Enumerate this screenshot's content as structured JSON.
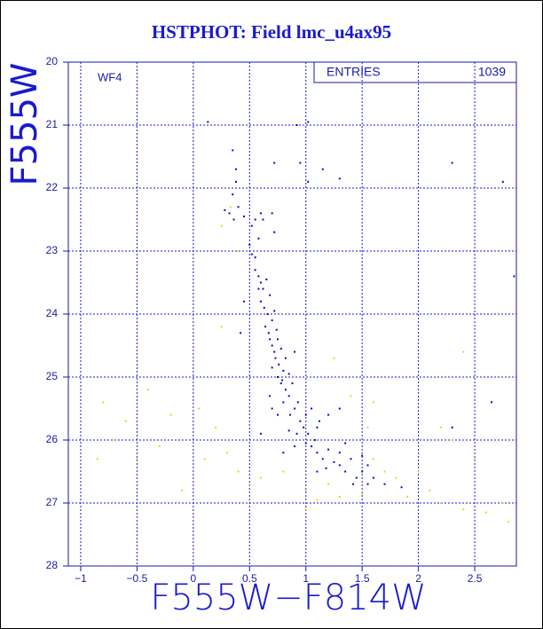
{
  "chart_data": {
    "type": "scatter",
    "title": "HSTPHOT: Field lmc_u4ax95",
    "annotation": "WF4",
    "entries_label": "ENTRIES",
    "entries_value": "1039",
    "xlabel": "F555W−F814W",
    "ylabel": "F555W",
    "xlim": [
      -1.11,
      2.87
    ],
    "ylim": [
      28,
      20
    ],
    "xticks": [
      {
        "value": -1,
        "label": "−1"
      },
      {
        "value": -0.5,
        "label": "−0.5"
      },
      0,
      0.5,
      1,
      1.5,
      2,
      2.5
    ],
    "yticks": [
      20,
      21,
      22,
      23,
      24,
      25,
      26,
      27,
      28
    ],
    "grid": true,
    "series": [
      {
        "color": "#f0d020",
        "x": [
          -0.8,
          -0.6,
          -0.5,
          -0.3,
          -0.1,
          0.1,
          0.2,
          0.3,
          -0.4,
          -0.7,
          0.05,
          0.4,
          0.6,
          0.8,
          1.0,
          1.2,
          1.3,
          1.5,
          1.7,
          1.8,
          1.9,
          2.0,
          2.1,
          2.2,
          2.4,
          2.6,
          2.75,
          2.8,
          1.4,
          1.6,
          1.55,
          2.4,
          2.2,
          2.5,
          0.25,
          1.25,
          0.4,
          0.33,
          0.25,
          1.6,
          -0.85,
          -0.2,
          0.5,
          1.0,
          1.1,
          2.3
        ],
        "values": [
          25.4,
          25.7,
          26.3,
          26.1,
          26.8,
          26.3,
          25.8,
          26.2,
          25.2,
          26.0,
          25.5,
          26.5,
          26.6,
          26.5,
          26.8,
          26.7,
          26.9,
          26.85,
          26.5,
          26.6,
          26.9,
          26.5,
          26.8,
          27.0,
          27.1,
          27.15,
          27.0,
          27.3,
          25.3,
          25.4,
          25.8,
          24.6,
          25.8,
          26.3,
          24.2,
          24.7,
          23.0,
          22.3,
          22.6,
          26.3,
          26.3,
          25.6,
          26.7,
          27.1,
          26.95,
          26.0
        ]
      },
      {
        "color": "#0a0ab4",
        "x": [
          0.28,
          0.32,
          0.35,
          0.38,
          0.36,
          0.4,
          0.45,
          0.52,
          0.55,
          0.6,
          0.62,
          0.58,
          0.5,
          0.52,
          0.55,
          0.7,
          0.72,
          0.35,
          0.38,
          0.13,
          0.55,
          0.58,
          0.6,
          0.62,
          0.65,
          0.6,
          0.63,
          0.66,
          0.68,
          0.7,
          0.64,
          0.72,
          0.58,
          0.67,
          0.74,
          0.45,
          0.68,
          0.7,
          0.72,
          0.75,
          0.73,
          0.76,
          0.78,
          0.8,
          0.7,
          0.82,
          0.75,
          0.79,
          0.85,
          0.9,
          0.78,
          0.82,
          0.85,
          0.88,
          0.8,
          0.9,
          0.86,
          0.93,
          0.95,
          0.7,
          0.75,
          0.98,
          1.0,
          1.02,
          0.92,
          1.05,
          1.1,
          0.6,
          0.85,
          1.08,
          1.12,
          1.2,
          1.3,
          0.68,
          1.0,
          1.05,
          1.1,
          1.15,
          1.2,
          1.25,
          1.3,
          1.35,
          1.4,
          1.45,
          1.5,
          1.42,
          1.55,
          1.6,
          1.7,
          1.55,
          1.3,
          1.18,
          0.9,
          0.8,
          1.35,
          1.5,
          1.85,
          1.1,
          0.95,
          1.02,
          0.92,
          1.02,
          1.15,
          1.3,
          2.3,
          2.75,
          2.65,
          2.3,
          0.42,
          0.72,
          2.85
        ],
        "values": [
          22.35,
          22.4,
          22.1,
          21.9,
          22.5,
          22.3,
          22.45,
          22.6,
          22.5,
          22.4,
          22.5,
          22.8,
          22.9,
          23.05,
          23.1,
          22.4,
          22.7,
          21.4,
          21.7,
          20.95,
          23.3,
          23.4,
          23.5,
          23.6,
          23.45,
          23.8,
          23.9,
          24.0,
          23.7,
          24.1,
          24.2,
          23.95,
          23.6,
          24.3,
          24.25,
          23.8,
          24.4,
          24.5,
          24.6,
          24.4,
          24.7,
          24.8,
          24.55,
          24.9,
          24.85,
          24.7,
          25.0,
          25.05,
          24.95,
          24.6,
          25.1,
          25.2,
          25.3,
          25.1,
          25.4,
          25.5,
          25.6,
          25.4,
          25.7,
          25.5,
          25.6,
          25.8,
          25.6,
          25.9,
          25.9,
          25.5,
          25.8,
          25.9,
          25.85,
          26.0,
          25.7,
          25.6,
          25.5,
          25.3,
          26.05,
          26.1,
          26.2,
          26.3,
          26.15,
          26.35,
          26.4,
          26.5,
          26.3,
          26.6,
          26.5,
          26.7,
          26.7,
          26.6,
          26.7,
          26.4,
          26.2,
          26.45,
          26.1,
          26.2,
          26.05,
          26.25,
          26.75,
          26.5,
          21.6,
          20.95,
          21.0,
          21.9,
          21.7,
          21.85,
          21.6,
          21.9,
          25.4,
          25.8,
          24.3,
          21.6,
          23.4
        ]
      }
    ]
  }
}
